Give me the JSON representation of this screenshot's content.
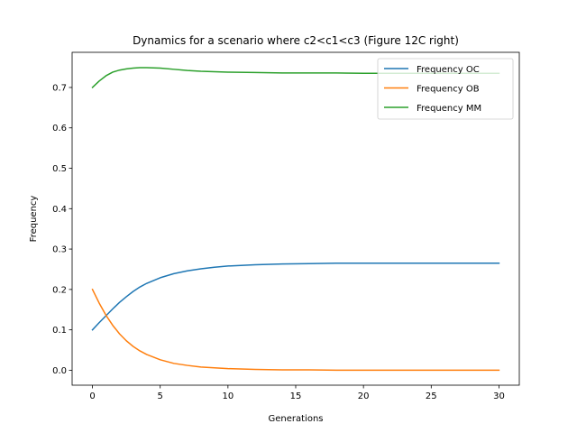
{
  "chart_data": {
    "type": "line",
    "title": "Dynamics for a scenario where c2<c1<c3 (Figure 12C right)",
    "xlabel": "Generations",
    "ylabel": "Frequency",
    "xlim": [
      -1.5,
      31.5
    ],
    "ylim": [
      -0.037,
      0.787
    ],
    "xticks": [
      0,
      5,
      10,
      15,
      20,
      25,
      30
    ],
    "xtick_labels": [
      "0",
      "5",
      "10",
      "15",
      "20",
      "25",
      "30"
    ],
    "yticks": [
      0.0,
      0.1,
      0.2,
      0.3,
      0.4,
      0.5,
      0.6,
      0.7
    ],
    "ytick_labels": [
      "0.0",
      "0.1",
      "0.2",
      "0.3",
      "0.4",
      "0.5",
      "0.6",
      "0.7"
    ],
    "grid": false,
    "legend_position": "upper right",
    "x": [
      0,
      0.5,
      1,
      1.5,
      2,
      2.5,
      3,
      3.5,
      4,
      5,
      6,
      7,
      8,
      9,
      10,
      12,
      14,
      16,
      18,
      20,
      22,
      24,
      26,
      28,
      30
    ],
    "series": [
      {
        "name": "Frequency OC",
        "color": "#1f77b4",
        "values": [
          0.1,
          0.118,
          0.135,
          0.152,
          0.168,
          0.182,
          0.195,
          0.206,
          0.215,
          0.229,
          0.239,
          0.246,
          0.251,
          0.255,
          0.258,
          0.261,
          0.263,
          0.264,
          0.265,
          0.265,
          0.265,
          0.265,
          0.265,
          0.265,
          0.265
        ]
      },
      {
        "name": "Frequency OB",
        "color": "#ff7f0e",
        "values": [
          0.2,
          0.166,
          0.136,
          0.111,
          0.09,
          0.073,
          0.059,
          0.048,
          0.039,
          0.026,
          0.017,
          0.012,
          0.008,
          0.006,
          0.004,
          0.002,
          0.001,
          0.001,
          0.0,
          0.0,
          0.0,
          0.0,
          0.0,
          0.0,
          0.0
        ]
      },
      {
        "name": "Frequency MM",
        "color": "#2ca02c",
        "values": [
          0.7,
          0.716,
          0.729,
          0.738,
          0.743,
          0.746,
          0.748,
          0.749,
          0.749,
          0.748,
          0.745,
          0.742,
          0.74,
          0.739,
          0.738,
          0.737,
          0.736,
          0.736,
          0.736,
          0.735,
          0.735,
          0.735,
          0.735,
          0.735,
          0.735
        ]
      }
    ]
  }
}
